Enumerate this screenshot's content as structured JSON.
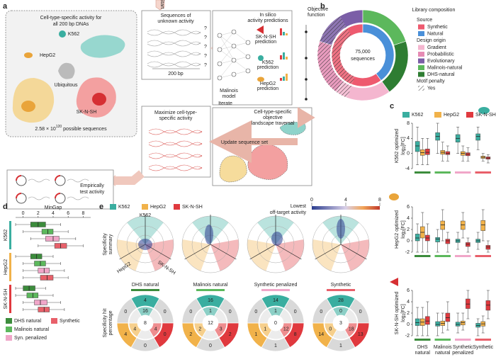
{
  "panel_labels": [
    "a",
    "b",
    "c",
    "d",
    "e"
  ],
  "panel_a": {
    "landscape_title": [
      "Cell-type-specific activity for",
      "all 200 bp DNAs"
    ],
    "cell_labels": {
      "k562": "K562",
      "hepg2": "HepG2",
      "ubiquitous": "Ubiquitous",
      "sknsh": "SK-N-SH"
    },
    "space_size": {
      "base": "2.58 × 10",
      "sup": "120",
      "rest": " possible sequences"
    },
    "start": "Start",
    "sequences_title": [
      "Sequences of",
      "unknown activity"
    ],
    "unknown_marks": [
      "?",
      "?",
      "?",
      "?",
      "?"
    ],
    "length": "200 bp",
    "model": [
      "Malinois",
      "model"
    ],
    "predictions_title": [
      "In silico",
      "activity predictions"
    ],
    "predictions": [
      [
        "SK-N-SH",
        "prediction"
      ],
      [
        "K562",
        "prediction"
      ],
      [
        "HepG2",
        "prediction"
      ]
    ],
    "objective": [
      "Objective",
      "function"
    ],
    "iterate": "Iterate",
    "maximize": [
      "Maximize cell-type-",
      "specific activity"
    ],
    "traversal": [
      "Cell-type-specific",
      "objective",
      "landscape traversal"
    ],
    "update": "Update sequence set",
    "test": [
      "Empirically",
      "test activity"
    ]
  },
  "panel_b": {
    "title": "Library composition",
    "total": "75,000",
    "total_unit": "sequences",
    "source_title": "Source",
    "source": [
      {
        "name": "Synthetic",
        "color": "#ee5a6f",
        "value": 60
      },
      {
        "name": "Natural",
        "color": "#4a90d9",
        "value": 40
      }
    ],
    "origin_title": "Design origin",
    "origin": [
      {
        "name": "Gradient",
        "color": "#f4b6cf",
        "value": 20
      },
      {
        "name": "Probabilistic",
        "color": "#e68bb4",
        "value": 20
      },
      {
        "name": "Evolutionary",
        "color": "#7b5ea7",
        "value": 20
      },
      {
        "name": "Malinois-natural",
        "color": "#5cb85c",
        "value": 20
      },
      {
        "name": "DHS-natural",
        "color": "#2e7d32",
        "value": 20
      }
    ],
    "penalty_title": "Motif penalty",
    "penalty": "Yes"
  },
  "panel_c": {
    "legend": [
      {
        "name": "K562",
        "color": "#3aaea0"
      },
      {
        "name": "HepG2",
        "color": "#f1b24a"
      },
      {
        "name": "SK-N-SH",
        "color": "#e0393e"
      }
    ],
    "unit": {
      "base": "log",
      "sub": "2",
      "rest": "[FC]"
    },
    "groups": [
      [
        "DHS",
        "natural"
      ],
      [
        "Malinois",
        "natural"
      ],
      [
        "Synthetic",
        "penalized"
      ],
      [
        "Synthetic"
      ]
    ],
    "group_colors": [
      "#3c8c3c",
      "#5cb85c",
      "#f0a6c8",
      "#e8606a"
    ],
    "plots": [
      {
        "ylabel": "K562 optimized",
        "ylim": [
          -4,
          8
        ],
        "yticks": [
          -4,
          0,
          4,
          8
        ],
        "boxes": [
          [
            [
              -3,
              0.5,
              2,
              3.2,
              7
            ],
            [
              -3,
              -0.5,
              0.2,
              1,
              4
            ],
            [
              -3,
              -0.3,
              0.3,
              1.2,
              4
            ]
          ],
          [
            [
              0,
              3.5,
              4.5,
              5.5,
              8
            ],
            [
              -2,
              -0.2,
              0.3,
              0.8,
              3
            ],
            [
              -2,
              -0.3,
              0,
              0.5,
              2
            ]
          ],
          [
            [
              0,
              3,
              4,
              5,
              7
            ],
            [
              -2,
              -0.5,
              0,
              0.5,
              2
            ],
            [
              -2,
              -0.6,
              -0.2,
              0.2,
              1.5
            ]
          ],
          [
            [
              1,
              3.5,
              4.5,
              5.2,
              7
            ],
            [
              -2,
              -1.3,
              -1,
              -0.7,
              0
            ],
            [
              -2.5,
              -1.5,
              -1.2,
              -0.9,
              -0.3
            ]
          ]
        ]
      },
      {
        "ylabel": "HepG2 optimized",
        "ylim": [
          -2,
          6
        ],
        "yticks": [
          -2,
          0,
          2,
          4,
          6
        ],
        "boxes": [
          [
            [
              -2,
              0,
              0.5,
              1.2,
              3
            ],
            [
              -2,
              0.5,
              1.5,
              2.5,
              5
            ],
            [
              -2,
              0,
              0.5,
              1,
              3
            ]
          ],
          [
            [
              -2,
              -0.2,
              0.3,
              0.6,
              2
            ],
            [
              0,
              2,
              2.8,
              3.5,
              5.5
            ],
            [
              -2,
              -0.5,
              0,
              0.3,
              1.5
            ]
          ],
          [
            [
              -1.5,
              -0.3,
              0,
              0.3,
              1.5
            ],
            [
              0.5,
              2,
              2.8,
              3.5,
              5
            ],
            [
              -2,
              -1,
              -0.6,
              -0.3,
              0.5
            ]
          ],
          [
            [
              -1.5,
              -0.3,
              0,
              0.3,
              1.5
            ],
            [
              0,
              1.8,
              2.8,
              3.6,
              5.5
            ],
            [
              -2,
              -1.5,
              -1.1,
              -0.8,
              0
            ]
          ]
        ]
      },
      {
        "ylabel": "SK-N-SH optimized",
        "ylim": [
          -2,
          6
        ],
        "yticks": [
          -2,
          0,
          2,
          4,
          6
        ],
        "boxes": [
          [
            [
              -2,
              -0.2,
              0.3,
              1,
              3
            ],
            [
              -2,
              -0.2,
              0.4,
              1,
              3
            ],
            [
              -2,
              0,
              0.6,
              1.4,
              4
            ]
          ],
          [
            [
              -2,
              -0.3,
              0,
              0.5,
              2
            ],
            [
              -1.5,
              -0.2,
              0.2,
              0.6,
              2
            ],
            [
              -1,
              0.5,
              1.2,
              2,
              4
            ]
          ],
          [
            [
              -1.5,
              -0.3,
              0,
              0.4,
              2
            ],
            [
              -1,
              -0.1,
              0.3,
              0.6,
              2
            ],
            [
              1,
              2.8,
              3.6,
              4.5,
              6
            ]
          ],
          [
            [
              -2,
              -0.5,
              -0.2,
              0.2,
              1
            ],
            [
              -1.5,
              -0.3,
              0.1,
              0.5,
              1.5
            ],
            [
              1,
              2.5,
              3.4,
              4.2,
              6
            ]
          ]
        ]
      }
    ]
  },
  "panel_d": {
    "title": "MinGap",
    "xlim": [
      -1,
      9
    ],
    "xticks": [
      0,
      2,
      4,
      6,
      8
    ],
    "rows": [
      "K562",
      "HepG2",
      "SK-N-SH"
    ],
    "row_colors": [
      "#3aaea0",
      "#f1b24a",
      "#e0393e"
    ],
    "libraries": [
      {
        "name": "DHS natural",
        "color": "#3c8c3c"
      },
      {
        "name": "Malinois natural",
        "color": "#5cb85c"
      },
      {
        "name": "Syn. penalized",
        "color": "#f0a6c8"
      },
      {
        "name": "Synthetic",
        "color": "#e8606a"
      }
    ],
    "boxes": [
      [
        [
          -1,
          1,
          2,
          3,
          5
        ],
        [
          0,
          2.5,
          3.3,
          4,
          6
        ],
        [
          1,
          3,
          4,
          4.8,
          7
        ],
        [
          2,
          4.2,
          5,
          5.8,
          8
        ]
      ],
      [
        [
          -1,
          1,
          1.8,
          2.5,
          4
        ],
        [
          0,
          1.5,
          2.3,
          3,
          5
        ],
        [
          0,
          2,
          2.8,
          3.5,
          5.5
        ],
        [
          0,
          2.3,
          3.2,
          4,
          6
        ]
      ],
      [
        [
          -1,
          0,
          0.8,
          1.6,
          3
        ],
        [
          -1,
          0.5,
          1.3,
          2,
          4
        ],
        [
          0,
          1.5,
          2.3,
          3.2,
          5
        ],
        [
          0,
          2,
          2.8,
          3.5,
          5.5
        ]
      ]
    ]
  },
  "panel_e": {
    "legend": [
      {
        "name": "K562",
        "color": "#3aaea0"
      },
      {
        "name": "HepG2",
        "color": "#f1b24a"
      },
      {
        "name": "SK-N-SH",
        "color": "#e0393e"
      }
    ],
    "colorbar_title": [
      "Lowest",
      "off-target activity"
    ],
    "colorbar_lim": [
      0,
      8
    ],
    "colorbar_ticks": [
      0,
      4,
      8
    ],
    "axis_labels": [
      "K562",
      "HepG2",
      "SK-N-SH"
    ],
    "row_labels": [
      [
        "Specificity",
        "summary"
      ],
      [
        "Specificity hit",
        "percentage"
      ]
    ],
    "libraries": [
      {
        "name": "DHS natural",
        "color": "#3c8c3c",
        "hits": [
          4,
          0,
          0,
          4,
          0,
          0,
          16,
          4,
          4,
          8
        ]
      },
      {
        "name": "Malinois natural",
        "color": "#5cb85c",
        "hits": [
          16,
          0,
          0,
          2,
          2,
          0,
          1,
          2,
          3,
          12
        ]
      },
      {
        "name": "Synthetic penalized",
        "color": "#f0a6c8",
        "hits": [
          14,
          0,
          0,
          1,
          8,
          1,
          1,
          1,
          12,
          0
        ]
      },
      {
        "name": "Synthetic",
        "color": "#e8606a",
        "hits": [
          28,
          0,
          0,
          14,
          13,
          1,
          0,
          0,
          18,
          3
        ]
      }
    ]
  }
}
